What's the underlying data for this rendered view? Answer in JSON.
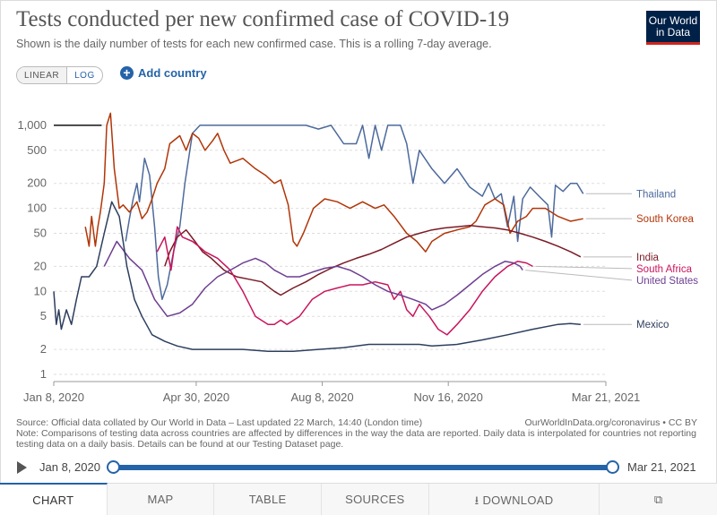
{
  "title": "Tests conducted per new confirmed case of COVID-19",
  "subtitle": "Shown is the daily number of tests for each new confirmed case. This is a rolling 7-day average.",
  "logo": {
    "line1": "Our World",
    "line2": "in Data",
    "bg": "#002147",
    "accent": "#ce261e"
  },
  "controls": {
    "linear_label": "LINEAR",
    "log_label": "LOG",
    "add_country_label": "Add country"
  },
  "chart_data": {
    "type": "line",
    "yscale": "log",
    "ylim": [
      1,
      2000
    ],
    "yticks": [
      1,
      2,
      5,
      10,
      20,
      50,
      100,
      200,
      500,
      1000
    ],
    "ytick_labels": [
      "1",
      "2",
      "5",
      "10",
      "20",
      "50",
      "100",
      "200",
      "500",
      "1,000"
    ],
    "x_domain": [
      0,
      438
    ],
    "xticks": [
      {
        "day": 0,
        "label": "Jan 8, 2020"
      },
      {
        "day": 113,
        "label": "Apr 30, 2020"
      },
      {
        "day": 213,
        "label": "Aug 8, 2020"
      },
      {
        "day": 313,
        "label": "Nov 16, 2020"
      },
      {
        "day": 438,
        "label": "Mar 21, 2021"
      }
    ],
    "grid": true,
    "legend": "right",
    "series": [
      {
        "name": "Thailand",
        "color": "#4c6a9c",
        "points": [
          [
            57,
            40
          ],
          [
            60,
            75
          ],
          [
            63,
            130
          ],
          [
            66,
            200
          ],
          [
            68,
            120
          ],
          [
            72,
            400
          ],
          [
            76,
            250
          ],
          [
            80,
            60
          ],
          [
            83,
            15
          ],
          [
            86,
            8
          ],
          [
            90,
            12
          ],
          [
            95,
            30
          ],
          [
            100,
            60
          ],
          [
            104,
            200
          ],
          [
            110,
            800
          ],
          [
            116,
            1000
          ],
          [
            200,
            1000
          ],
          [
            210,
            900
          ],
          [
            220,
            1000
          ],
          [
            230,
            600
          ],
          [
            240,
            600
          ],
          [
            245,
            1000
          ],
          [
            250,
            400
          ],
          [
            255,
            1000
          ],
          [
            260,
            500
          ],
          [
            265,
            1000
          ],
          [
            275,
            1000
          ],
          [
            280,
            600
          ],
          [
            285,
            200
          ],
          [
            290,
            500
          ],
          [
            300,
            300
          ],
          [
            310,
            200
          ],
          [
            320,
            300
          ],
          [
            330,
            180
          ],
          [
            340,
            140
          ],
          [
            345,
            200
          ],
          [
            350,
            130
          ],
          [
            355,
            150
          ],
          [
            360,
            60
          ],
          [
            365,
            140
          ],
          [
            368,
            40
          ],
          [
            372,
            130
          ],
          [
            378,
            180
          ],
          [
            385,
            140
          ],
          [
            392,
            110
          ],
          [
            395,
            45
          ],
          [
            398,
            190
          ],
          [
            404,
            160
          ],
          [
            410,
            200
          ],
          [
            415,
            200
          ],
          [
            420,
            150
          ]
        ]
      },
      {
        "name": "South Korea",
        "color": "#b13507",
        "points": [
          [
            25,
            60
          ],
          [
            28,
            35
          ],
          [
            30,
            80
          ],
          [
            33,
            35
          ],
          [
            35,
            60
          ],
          [
            37,
            90
          ],
          [
            40,
            200
          ],
          [
            42,
            1000
          ],
          [
            45,
            1400
          ],
          [
            48,
            300
          ],
          [
            52,
            100
          ],
          [
            55,
            110
          ],
          [
            60,
            90
          ],
          [
            66,
            120
          ],
          [
            70,
            75
          ],
          [
            74,
            90
          ],
          [
            78,
            130
          ],
          [
            82,
            200
          ],
          [
            88,
            300
          ],
          [
            92,
            600
          ],
          [
            100,
            750
          ],
          [
            105,
            500
          ],
          [
            110,
            800
          ],
          [
            115,
            700
          ],
          [
            120,
            500
          ],
          [
            126,
            650
          ],
          [
            130,
            800
          ],
          [
            135,
            500
          ],
          [
            140,
            350
          ],
          [
            150,
            400
          ],
          [
            160,
            300
          ],
          [
            168,
            250
          ],
          [
            175,
            200
          ],
          [
            180,
            220
          ],
          [
            186,
            110
          ],
          [
            190,
            40
          ],
          [
            193,
            35
          ],
          [
            198,
            50
          ],
          [
            206,
            100
          ],
          [
            215,
            130
          ],
          [
            225,
            120
          ],
          [
            235,
            100
          ],
          [
            245,
            120
          ],
          [
            255,
            100
          ],
          [
            262,
            110
          ],
          [
            270,
            80
          ],
          [
            280,
            50
          ],
          [
            288,
            40
          ],
          [
            295,
            30
          ],
          [
            300,
            40
          ],
          [
            310,
            50
          ],
          [
            320,
            55
          ],
          [
            330,
            60
          ],
          [
            335,
            70
          ],
          [
            342,
            110
          ],
          [
            350,
            130
          ],
          [
            357,
            110
          ],
          [
            362,
            50
          ],
          [
            368,
            70
          ],
          [
            375,
            80
          ],
          [
            380,
            100
          ],
          [
            390,
            100
          ],
          [
            400,
            80
          ],
          [
            410,
            70
          ],
          [
            420,
            75
          ]
        ]
      },
      {
        "name": "India",
        "color": "#7a1b25",
        "points": [
          [
            88,
            20
          ],
          [
            92,
            30
          ],
          [
            98,
            45
          ],
          [
            105,
            55
          ],
          [
            112,
            40
          ],
          [
            118,
            30
          ],
          [
            125,
            25
          ],
          [
            135,
            18
          ],
          [
            145,
            15
          ],
          [
            155,
            14
          ],
          [
            165,
            13
          ],
          [
            175,
            10
          ],
          [
            180,
            9
          ],
          [
            190,
            11
          ],
          [
            200,
            13
          ],
          [
            210,
            16
          ],
          [
            220,
            19
          ],
          [
            230,
            22
          ],
          [
            240,
            25
          ],
          [
            250,
            28
          ],
          [
            260,
            32
          ],
          [
            270,
            38
          ],
          [
            280,
            45
          ],
          [
            290,
            50
          ],
          [
            300,
            55
          ],
          [
            310,
            58
          ],
          [
            320,
            60
          ],
          [
            330,
            62
          ],
          [
            340,
            60
          ],
          [
            350,
            58
          ],
          [
            360,
            55
          ],
          [
            370,
            50
          ],
          [
            380,
            45
          ],
          [
            390,
            40
          ],
          [
            400,
            35
          ],
          [
            410,
            30
          ],
          [
            418,
            26
          ]
        ]
      },
      {
        "name": "South Africa",
        "color": "#c8155c",
        "points": [
          [
            82,
            30
          ],
          [
            88,
            45
          ],
          [
            93,
            18
          ],
          [
            98,
            60
          ],
          [
            102,
            45
          ],
          [
            110,
            40
          ],
          [
            115,
            35
          ],
          [
            120,
            30
          ],
          [
            130,
            25
          ],
          [
            140,
            18
          ],
          [
            150,
            10
          ],
          [
            160,
            5
          ],
          [
            170,
            4
          ],
          [
            175,
            4
          ],
          [
            180,
            4.5
          ],
          [
            185,
            4
          ],
          [
            195,
            5
          ],
          [
            205,
            8
          ],
          [
            215,
            10
          ],
          [
            225,
            11
          ],
          [
            235,
            12
          ],
          [
            245,
            12
          ],
          [
            255,
            13
          ],
          [
            265,
            12
          ],
          [
            270,
            8
          ],
          [
            275,
            10
          ],
          [
            280,
            6
          ],
          [
            285,
            5
          ],
          [
            290,
            7
          ],
          [
            298,
            5
          ],
          [
            305,
            3.5
          ],
          [
            312,
            3
          ],
          [
            320,
            4
          ],
          [
            330,
            6
          ],
          [
            340,
            10
          ],
          [
            350,
            15
          ],
          [
            360,
            20
          ],
          [
            368,
            23
          ],
          [
            375,
            22
          ],
          [
            380,
            20
          ]
        ]
      },
      {
        "name": "United States",
        "color": "#6d3e91",
        "points": [
          [
            40,
            20
          ],
          [
            50,
            40
          ],
          [
            60,
            25
          ],
          [
            70,
            18
          ],
          [
            80,
            8
          ],
          [
            90,
            5
          ],
          [
            100,
            5.5
          ],
          [
            110,
            7
          ],
          [
            120,
            11
          ],
          [
            130,
            15
          ],
          [
            140,
            18
          ],
          [
            150,
            22
          ],
          [
            160,
            25
          ],
          [
            168,
            22
          ],
          [
            175,
            18
          ],
          [
            185,
            15
          ],
          [
            195,
            15
          ],
          [
            205,
            17
          ],
          [
            215,
            19
          ],
          [
            225,
            20
          ],
          [
            235,
            18
          ],
          [
            245,
            15
          ],
          [
            255,
            12
          ],
          [
            265,
            10
          ],
          [
            275,
            9
          ],
          [
            285,
            8
          ],
          [
            295,
            7
          ],
          [
            300,
            6
          ],
          [
            310,
            7
          ],
          [
            320,
            9
          ],
          [
            330,
            12
          ],
          [
            340,
            16
          ],
          [
            350,
            20
          ],
          [
            358,
            23
          ],
          [
            365,
            22
          ],
          [
            370,
            20
          ],
          [
            372,
            18
          ]
        ]
      },
      {
        "name": "Mexico",
        "color": "#2d3f5e",
        "points": [
          [
            0,
            10
          ],
          [
            2,
            4
          ],
          [
            4,
            6
          ],
          [
            6,
            3.5
          ],
          [
            10,
            6
          ],
          [
            14,
            4
          ],
          [
            18,
            8
          ],
          [
            22,
            15
          ],
          [
            28,
            15
          ],
          [
            34,
            20
          ],
          [
            40,
            50
          ],
          [
            46,
            120
          ],
          [
            52,
            80
          ],
          [
            58,
            20
          ],
          [
            64,
            8
          ],
          [
            70,
            5
          ],
          [
            78,
            3
          ],
          [
            88,
            2.5
          ],
          [
            98,
            2.2
          ],
          [
            110,
            2
          ],
          [
            130,
            2
          ],
          [
            150,
            2
          ],
          [
            170,
            1.9
          ],
          [
            190,
            1.9
          ],
          [
            210,
            2
          ],
          [
            230,
            2.1
          ],
          [
            250,
            2.3
          ],
          [
            270,
            2.3
          ],
          [
            290,
            2.3
          ],
          [
            300,
            2.2
          ],
          [
            320,
            2.3
          ],
          [
            340,
            2.6
          ],
          [
            360,
            3
          ],
          [
            380,
            3.5
          ],
          [
            400,
            4
          ],
          [
            410,
            4.1
          ],
          [
            418,
            4
          ]
        ]
      }
    ],
    "max_line": {
      "from_day": 0,
      "to_day": 38,
      "value": 1000
    }
  },
  "source": {
    "left": "Source: Official data collated by Our World in Data – Last updated 22 March, 14:40 (London time)",
    "right": "OurWorldInData.org/coronavirus • CC BY",
    "note": "Note: Comparisons of testing data across countries are affected by differences in the way the data are reported. Daily data is interpolated for countries not reporting testing data on a daily basis. Details can be found at our Testing Dataset page."
  },
  "timeline": {
    "start": "Jan 8, 2020",
    "end": "Mar 21, 2021"
  },
  "tabs": [
    {
      "label": "CHART",
      "icon": ""
    },
    {
      "label": "MAP",
      "icon": ""
    },
    {
      "label": "TABLE",
      "icon": ""
    },
    {
      "label": "SOURCES",
      "icon": ""
    },
    {
      "label": "DOWNLOAD",
      "icon": "download-icon"
    },
    {
      "label": "",
      "icon": "share-icon"
    }
  ]
}
